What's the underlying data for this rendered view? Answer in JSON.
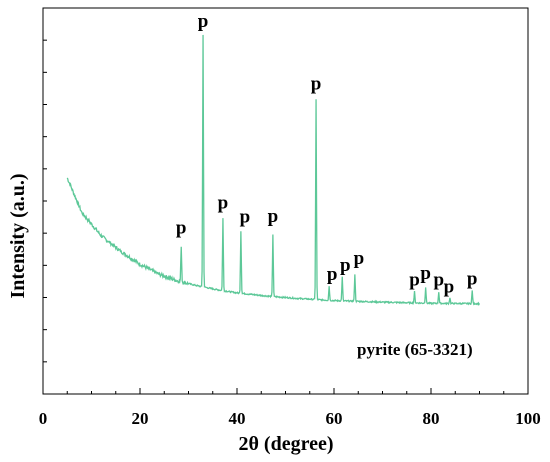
{
  "chart_data": {
    "type": "line",
    "title": "",
    "xlabel": "2θ (degree)",
    "ylabel": "Intensity (a.u.)",
    "xlim": [
      0,
      100
    ],
    "ylim": [
      0,
      100
    ],
    "x_ticks": [
      "0",
      "20",
      "40",
      "60",
      "80",
      "100"
    ],
    "y_ticks_labeled": false,
    "grid": false,
    "line_color": "#5dc898",
    "annotation": "pyrite (65-3321)",
    "baseline": {
      "start": [
        5,
        56
      ],
      "points": [
        [
          5,
          56
        ],
        [
          8,
          47
        ],
        [
          12,
          41
        ],
        [
          16,
          37
        ],
        [
          20,
          33.6
        ],
        [
          24,
          31
        ],
        [
          28,
          29.2
        ],
        [
          32,
          28
        ],
        [
          36,
          27
        ],
        [
          40,
          26.2
        ],
        [
          46,
          25.4
        ],
        [
          52,
          24.8
        ],
        [
          60,
          24.2
        ],
        [
          70,
          23.8
        ],
        [
          80,
          23.5
        ],
        [
          90,
          23.4
        ]
      ]
    },
    "peaks": [
      {
        "x": 28.5,
        "y": 38.5,
        "label": "p"
      },
      {
        "x": 33.0,
        "y": 93.0,
        "label": "p"
      },
      {
        "x": 37.1,
        "y": 45.5,
        "label": "p"
      },
      {
        "x": 40.8,
        "y": 42.3,
        "label": "p"
      },
      {
        "x": 47.4,
        "y": 41.4,
        "label": "p"
      },
      {
        "x": 56.3,
        "y": 76.3,
        "label": "p"
      },
      {
        "x": 59.0,
        "y": 28.0,
        "label": "p"
      },
      {
        "x": 61.7,
        "y": 30.3,
        "label": "p"
      },
      {
        "x": 64.3,
        "y": 31.1,
        "label": "p"
      },
      {
        "x": 76.6,
        "y": 26.5,
        "label": "p"
      },
      {
        "x": 78.9,
        "y": 27.7,
        "label": "p"
      },
      {
        "x": 81.6,
        "y": 26.5,
        "label": "p"
      },
      {
        "x": 83.9,
        "y": 25.0,
        "label": "p"
      },
      {
        "x": 88.5,
        "y": 26.8,
        "label": "p"
      }
    ]
  }
}
